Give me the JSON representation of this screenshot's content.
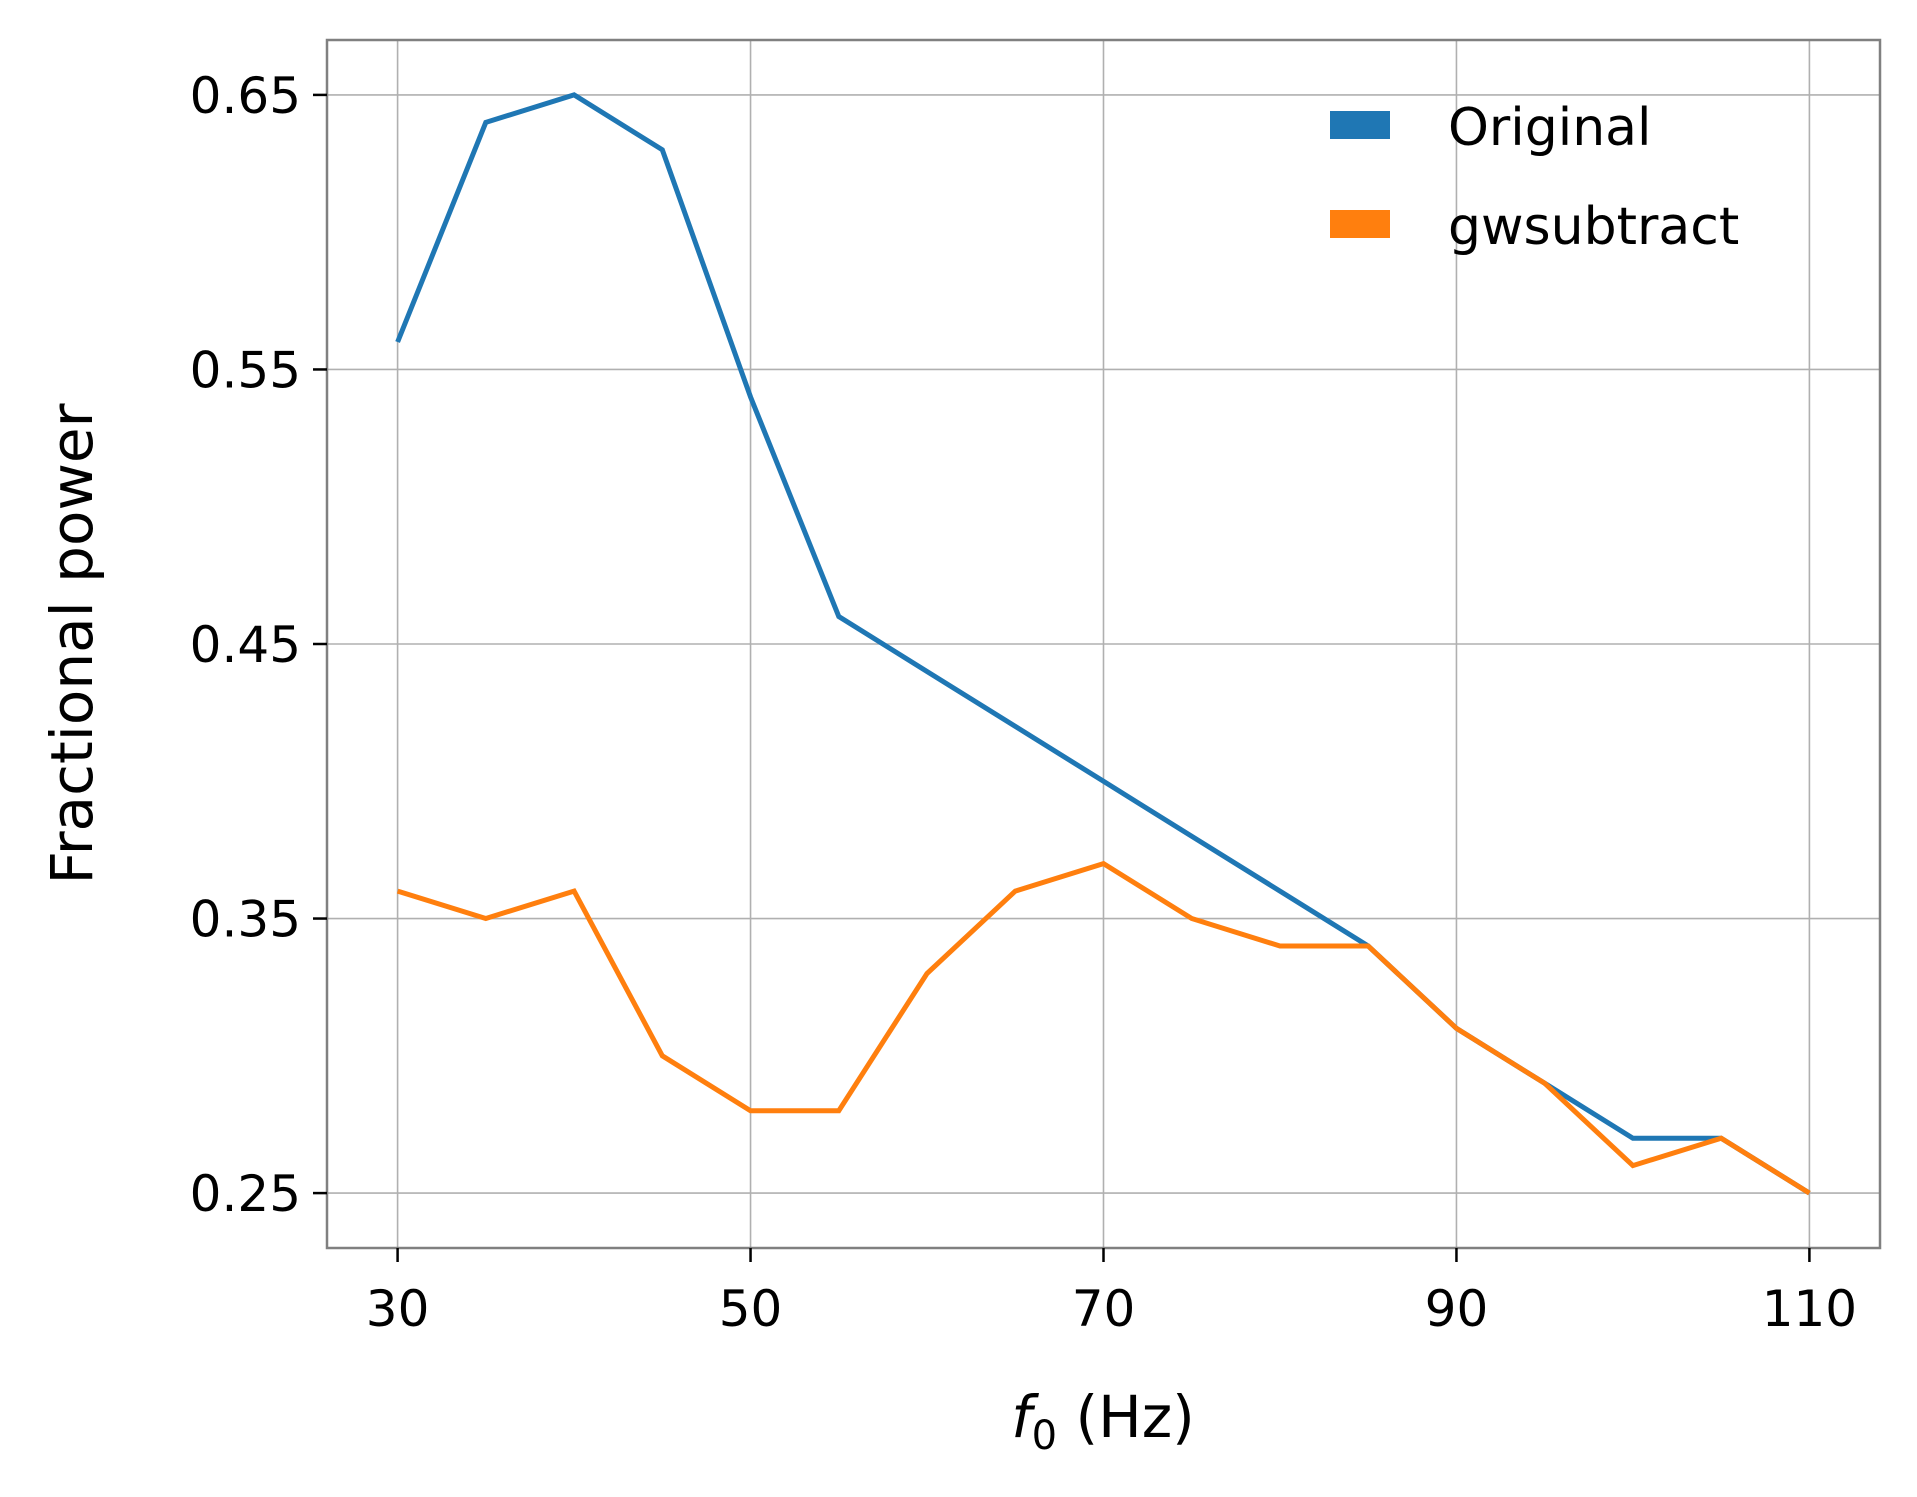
{
  "chart_data": {
    "type": "line",
    "title": "",
    "xlabel": {
      "symbol": "f",
      "subscript": "0",
      "unit": " (Hz)"
    },
    "ylabel": "Fractional power",
    "xlim": [
      26,
      114
    ],
    "ylim": [
      0.23,
      0.67
    ],
    "xticks": [
      30,
      50,
      70,
      90,
      110
    ],
    "yticks": [
      0.25,
      0.35,
      0.45,
      0.55,
      0.65
    ],
    "xtick_labels": [
      "30",
      "50",
      "70",
      "90",
      "110"
    ],
    "ytick_labels": [
      "0.25",
      "0.35",
      "0.45",
      "0.55",
      "0.65"
    ],
    "grid": true,
    "legend_position": "top-right",
    "x": [
      30,
      35,
      40,
      45,
      50,
      55,
      60,
      65,
      70,
      75,
      80,
      85,
      90,
      95,
      100,
      105,
      110
    ],
    "series": [
      {
        "name": "Original",
        "color": "#1f77b4",
        "values": [
          0.56,
          0.64,
          0.65,
          0.63,
          0.54,
          0.46,
          0.44,
          0.42,
          0.4,
          0.38,
          0.36,
          0.34,
          0.31,
          0.29,
          0.27,
          0.27,
          0.25
        ]
      },
      {
        "name": "gwsubtract",
        "color": "#ff7f0e",
        "values": [
          0.36,
          0.35,
          0.36,
          0.3,
          0.28,
          0.28,
          0.33,
          0.36,
          0.37,
          0.35,
          0.34,
          0.34,
          0.31,
          0.29,
          0.26,
          0.27,
          0.25
        ]
      }
    ],
    "colors": {
      "grid": "#b0b0b0",
      "spine": "#808080",
      "text": "#000000"
    }
  }
}
